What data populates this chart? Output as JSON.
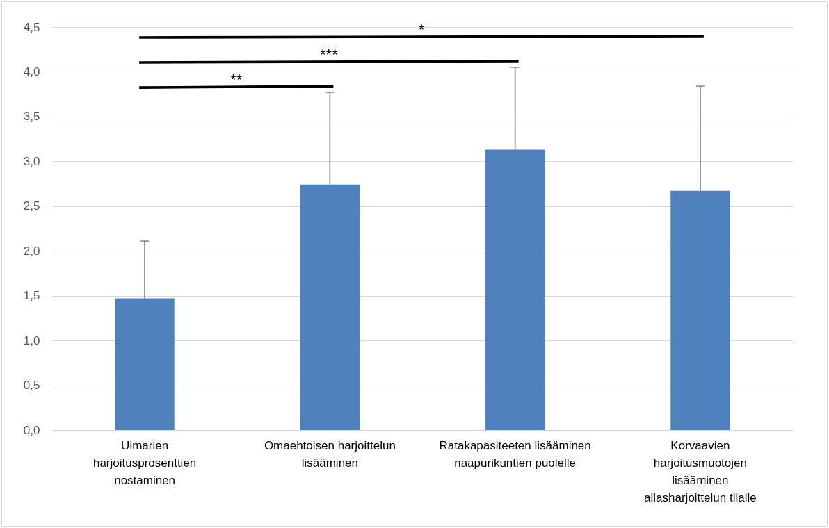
{
  "chart_data": {
    "type": "bar",
    "categories": [
      "Uimarien harjoitusprosenttien nostaminen",
      "Omaehtoisen harjoittelun lisääminen",
      "Ratakapasiteeten lisääminen naapurikuntien puolelle",
      "Korvaavien harjoitusmuotojen lisääminen allasharjoittelun tilalle"
    ],
    "values": [
      1.47,
      2.74,
      3.13,
      2.67
    ],
    "errors": [
      [
        1.47,
        2.11
      ],
      [
        2.74,
        3.77
      ],
      [
        3.13,
        4.05
      ],
      [
        2.67,
        3.84
      ]
    ],
    "color": "#4f81bd",
    "ylim": [
      0,
      4.5
    ],
    "yticks": [
      {
        "value": 0,
        "label": "0,0"
      },
      {
        "value": 0.5,
        "label": "0,5"
      },
      {
        "value": 1,
        "label": "1,0"
      },
      {
        "value": 1.5,
        "label": "1,5"
      },
      {
        "value": 2,
        "label": "2,0"
      },
      {
        "value": 2.5,
        "label": "2,5"
      },
      {
        "value": 3,
        "label": "3,0"
      },
      {
        "value": 3.5,
        "label": "3,5"
      },
      {
        "value": 4,
        "label": "4,0"
      },
      {
        "value": 4.5,
        "label": "4,5"
      }
    ],
    "grid": "y",
    "annotations": [
      "**",
      "***",
      "*"
    ]
  }
}
